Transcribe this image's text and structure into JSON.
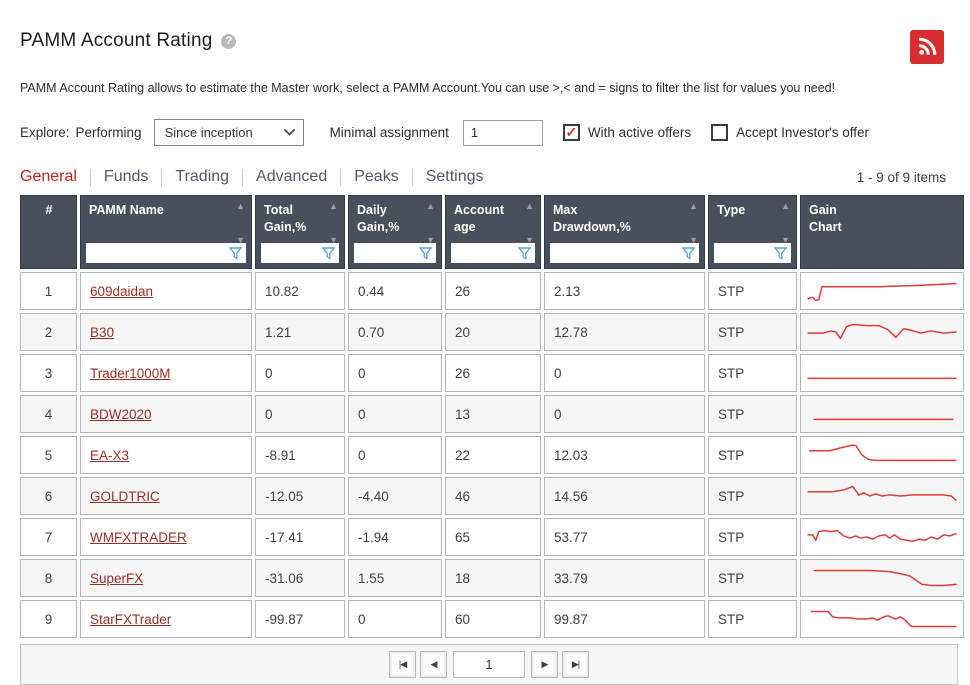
{
  "page": {
    "title": "PAMM Account Rating",
    "help_glyph": "?",
    "description": "PAMM Account Rating allows to estimate the Master work, select a PAMM Account.You can use >,< and = signs to filter the list for values you need!"
  },
  "filters": {
    "explore_label": "Explore:",
    "performing_label": "Performing",
    "period_selected": "Since inception",
    "min_assignment_label": "Minimal assignment",
    "min_assignment_value": "1",
    "with_active_offers_label": "With active offers",
    "with_active_offers_checked": true,
    "accept_investors_offer_label": "Accept Investor's offer",
    "accept_investors_offer_checked": false,
    "check_glyph": "✓"
  },
  "tabs": [
    {
      "label": "General",
      "active": true
    },
    {
      "label": "Funds",
      "active": false
    },
    {
      "label": "Trading",
      "active": false
    },
    {
      "label": "Advanced",
      "active": false
    },
    {
      "label": "Peaks",
      "active": false
    },
    {
      "label": "Settings",
      "active": false
    }
  ],
  "items_count": "1 - 9 of 9 items",
  "table": {
    "columns": [
      {
        "label": "#",
        "sortable": false,
        "filterable": false
      },
      {
        "label": "PAMM Name",
        "sortable": true,
        "filterable": true
      },
      {
        "label": "Total\nGain,%",
        "sortable": true,
        "filterable": true
      },
      {
        "label": "Daily\nGain,%",
        "sortable": true,
        "filterable": true
      },
      {
        "label": "Account\nage",
        "sortable": true,
        "filterable": true
      },
      {
        "label": "Max\nDrawdown,%",
        "sortable": true,
        "filterable": true
      },
      {
        "label": "Type",
        "sortable": true,
        "filterable": true
      },
      {
        "label": "Gain\nChart",
        "sortable": false,
        "filterable": false
      }
    ],
    "rows": [
      {
        "num": "1",
        "name": "609daidan",
        "total": "10.82",
        "daily": "0.44",
        "age": "26",
        "drawdown": "2.13",
        "type": "STP",
        "spark": [
          [
            2,
            22
          ],
          [
            5,
            21
          ],
          [
            7,
            24
          ],
          [
            9,
            23
          ],
          [
            11,
            11
          ],
          [
            30,
            11
          ],
          [
            50,
            11
          ],
          [
            55,
            10.5
          ],
          [
            70,
            10
          ],
          [
            85,
            9
          ],
          [
            98,
            8
          ]
        ]
      },
      {
        "num": "2",
        "name": "B30",
        "total": "1.21",
        "daily": "0.70",
        "age": "20",
        "drawdown": "12.78",
        "type": "STP",
        "spark": [
          [
            2,
            16
          ],
          [
            12,
            16
          ],
          [
            17,
            14
          ],
          [
            20,
            15
          ],
          [
            23,
            21
          ],
          [
            27,
            10
          ],
          [
            31,
            8
          ],
          [
            40,
            9
          ],
          [
            48,
            9
          ],
          [
            54,
            13
          ],
          [
            59,
            20
          ],
          [
            64,
            12
          ],
          [
            68,
            13
          ],
          [
            75,
            16
          ],
          [
            82,
            14
          ],
          [
            90,
            16
          ],
          [
            98,
            15
          ]
        ]
      },
      {
        "num": "3",
        "name": "Trader1000M",
        "total": "0",
        "daily": "0",
        "age": "26",
        "drawdown": "0",
        "type": "STP",
        "spark": [
          [
            2,
            20
          ],
          [
            98,
            20
          ]
        ]
      },
      {
        "num": "4",
        "name": "BDW2020",
        "total": "0",
        "daily": "0",
        "age": "13",
        "drawdown": "0",
        "type": "STP",
        "spark": [
          [
            6,
            20
          ],
          [
            96,
            20
          ]
        ]
      },
      {
        "num": "5",
        "name": "EA-X3",
        "total": "-8.91",
        "daily": "0",
        "age": "22",
        "drawdown": "12.03",
        "type": "STP",
        "spark": [
          [
            3,
            11
          ],
          [
            16,
            11
          ],
          [
            24,
            8
          ],
          [
            30,
            6
          ],
          [
            33,
            6
          ],
          [
            37,
            15
          ],
          [
            41,
            19
          ],
          [
            45,
            20
          ],
          [
            98,
            20
          ]
        ]
      },
      {
        "num": "6",
        "name": "GOLDTRIC",
        "total": "-12.05",
        "daily": "-4.40",
        "age": "46",
        "drawdown": "14.56",
        "type": "STP",
        "spark": [
          [
            2,
            11
          ],
          [
            18,
            11
          ],
          [
            26,
            9
          ],
          [
            31,
            6
          ],
          [
            33,
            10
          ],
          [
            35,
            14
          ],
          [
            38,
            12
          ],
          [
            42,
            15
          ],
          [
            46,
            13
          ],
          [
            50,
            15
          ],
          [
            55,
            14
          ],
          [
            62,
            15
          ],
          [
            70,
            14
          ],
          [
            80,
            14
          ],
          [
            90,
            14
          ],
          [
            95,
            15
          ],
          [
            98,
            19
          ]
        ]
      },
      {
        "num": "7",
        "name": "WMFXTRADER",
        "total": "-17.41",
        "daily": "-1.94",
        "age": "65",
        "drawdown": "53.77",
        "type": "STP",
        "spark": [
          [
            2,
            13
          ],
          [
            5,
            13
          ],
          [
            7,
            18
          ],
          [
            9,
            10
          ],
          [
            13,
            9
          ],
          [
            17,
            10
          ],
          [
            21,
            9
          ],
          [
            25,
            14
          ],
          [
            29,
            16
          ],
          [
            33,
            14
          ],
          [
            36,
            16
          ],
          [
            40,
            15
          ],
          [
            44,
            17
          ],
          [
            48,
            14
          ],
          [
            52,
            13
          ],
          [
            55,
            16
          ],
          [
            58,
            13
          ],
          [
            62,
            17
          ],
          [
            66,
            18
          ],
          [
            70,
            19
          ],
          [
            74,
            17
          ],
          [
            78,
            18
          ],
          [
            82,
            15
          ],
          [
            86,
            17
          ],
          [
            90,
            13
          ],
          [
            94,
            14
          ],
          [
            98,
            12
          ]
        ]
      },
      {
        "num": "8",
        "name": "SuperFX",
        "total": "-31.06",
        "daily": "1.55",
        "age": "18",
        "drawdown": "33.79",
        "type": "STP",
        "spark": [
          [
            6,
            8
          ],
          [
            42,
            8
          ],
          [
            55,
            9
          ],
          [
            62,
            11
          ],
          [
            68,
            13
          ],
          [
            72,
            17
          ],
          [
            76,
            21
          ],
          [
            82,
            22
          ],
          [
            90,
            22
          ],
          [
            98,
            21
          ]
        ]
      },
      {
        "num": "9",
        "name": "StarFXTrader",
        "total": "-99.87",
        "daily": "0",
        "age": "60",
        "drawdown": "99.87",
        "type": "STP",
        "spark": [
          [
            4,
            8
          ],
          [
            15,
            8
          ],
          [
            18,
            13
          ],
          [
            22,
            14
          ],
          [
            30,
            14
          ],
          [
            34,
            15
          ],
          [
            40,
            15
          ],
          [
            44,
            14
          ],
          [
            47,
            16
          ],
          [
            51,
            13
          ],
          [
            54,
            12
          ],
          [
            57,
            14
          ],
          [
            59,
            15
          ],
          [
            62,
            13
          ],
          [
            65,
            16
          ],
          [
            69,
            22
          ],
          [
            98,
            22
          ]
        ]
      }
    ]
  },
  "pagination": {
    "first": "|◀",
    "prev": "◀",
    "page": "1",
    "next": "▶",
    "last": "▶|"
  },
  "colors": {
    "accent_red": "#c41f1f",
    "link_red": "#9c2d25",
    "sparkline": "#e03a3a",
    "rss_red": "#d62e2e",
    "header_bg": "#4a505b",
    "funnel_blue": "#5aa7d6"
  }
}
